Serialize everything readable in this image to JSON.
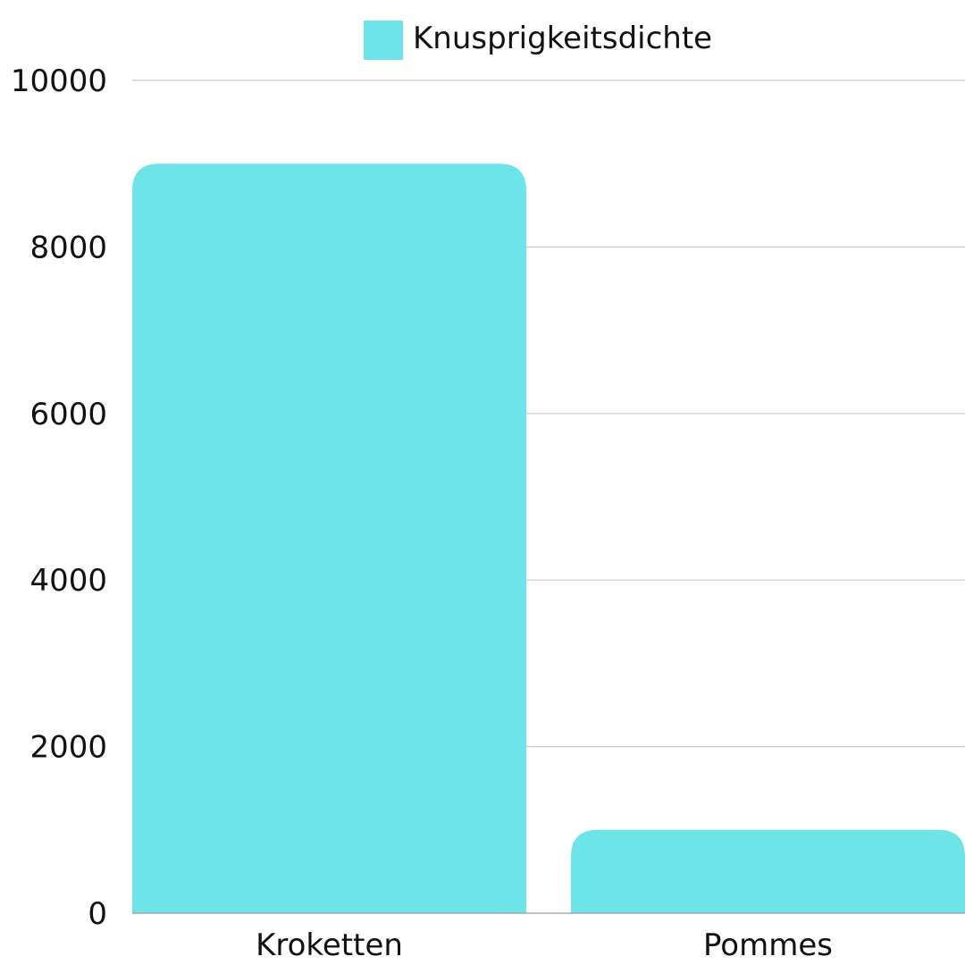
{
  "chart_data": {
    "type": "bar",
    "categories": [
      "Kroketten",
      "Pommes"
    ],
    "series": [
      {
        "name": "Knusprigkeitsdichte",
        "values": [
          9000,
          1000
        ]
      }
    ],
    "title": "",
    "xlabel": "",
    "ylabel": "",
    "ylim": [
      0,
      10000
    ],
    "yticks": [
      0,
      2000,
      4000,
      6000,
      8000,
      10000
    ],
    "grid": true,
    "legend": "top-center"
  },
  "colors": {
    "bar": "#6ce4e8",
    "grid": "#c8c8c8",
    "axis": "#999999",
    "text": "#111111"
  }
}
